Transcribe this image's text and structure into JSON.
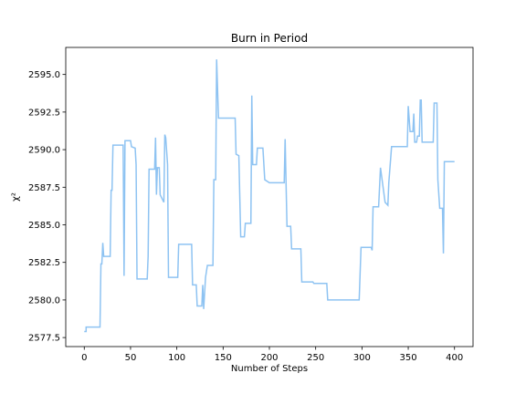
{
  "chart_data": {
    "type": "line",
    "title": "Burn in Period",
    "xlabel": "Number of Steps",
    "ylabel": "χ²",
    "color": "#8ec3f2",
    "x": [
      0,
      2,
      2,
      17,
      18,
      19,
      20,
      21,
      28,
      29,
      30,
      31,
      42,
      43,
      44,
      50,
      51,
      55,
      56,
      57,
      68,
      69,
      70,
      76,
      77,
      78,
      79,
      81,
      82,
      86,
      87,
      88,
      90,
      91,
      101,
      102,
      116,
      117,
      121,
      122,
      127,
      128,
      129,
      131,
      133,
      134,
      139,
      140,
      142,
      143,
      145,
      163,
      164,
      167,
      169,
      173,
      174,
      180,
      181,
      182,
      186,
      187,
      193,
      195,
      200,
      216,
      217,
      219,
      223,
      224,
      234,
      235,
      247,
      248,
      262,
      263,
      297,
      299,
      310,
      311,
      312,
      318,
      320,
      325,
      328,
      329,
      332,
      349,
      350,
      352,
      355,
      356,
      357,
      359,
      360,
      362,
      363,
      364,
      365,
      377,
      378,
      381,
      382,
      384,
      387,
      388,
      389,
      400
    ],
    "values": [
      2577.9,
      2577.9,
      2578.2,
      2578.2,
      2582.4,
      2582.4,
      2583.8,
      2582.9,
      2582.9,
      2587.3,
      2587.3,
      2590.3,
      2590.3,
      2581.6,
      2590.6,
      2590.6,
      2590.2,
      2590.1,
      2589.0,
      2581.4,
      2581.4,
      2582.9,
      2588.7,
      2588.7,
      2590.8,
      2587.0,
      2588.8,
      2588.8,
      2587.0,
      2586.5,
      2591.0,
      2590.8,
      2589.0,
      2581.5,
      2581.5,
      2583.7,
      2583.7,
      2581.0,
      2581.0,
      2579.6,
      2579.6,
      2581.0,
      2579.4,
      2581.5,
      2582.3,
      2582.3,
      2582.3,
      2588.0,
      2588.0,
      2596.0,
      2592.1,
      2592.1,
      2589.7,
      2589.6,
      2584.2,
      2584.2,
      2585.1,
      2585.1,
      2593.6,
      2589.0,
      2589.0,
      2590.1,
      2590.1,
      2588.0,
      2587.8,
      2587.8,
      2590.7,
      2584.9,
      2584.9,
      2583.4,
      2583.4,
      2581.2,
      2581.2,
      2581.1,
      2581.1,
      2580.0,
      2580.0,
      2583.5,
      2583.5,
      2583.3,
      2586.2,
      2586.2,
      2588.8,
      2586.5,
      2586.3,
      2587.8,
      2590.2,
      2590.2,
      2592.9,
      2591.2,
      2591.2,
      2592.4,
      2590.5,
      2590.5,
      2590.9,
      2590.9,
      2593.3,
      2593.3,
      2590.5,
      2590.5,
      2593.1,
      2593.1,
      2588.0,
      2586.1,
      2586.1,
      2583.1,
      2589.2,
      2589.2
    ],
    "xlim": [
      -20,
      420
    ],
    "xticks": [
      0,
      50,
      100,
      150,
      200,
      250,
      300,
      350,
      400
    ],
    "ylim": [
      2576.9,
      2596.8
    ],
    "yticks": [
      2577.5,
      {
        "value": 2580,
        "label": "2580.0"
      },
      2582.5,
      {
        "value": 2585,
        "label": "2585.0"
      },
      2587.5,
      {
        "value": 2590,
        "label": "2590.0"
      },
      2592.5,
      {
        "value": 2595,
        "label": "2595.0"
      }
    ]
  }
}
